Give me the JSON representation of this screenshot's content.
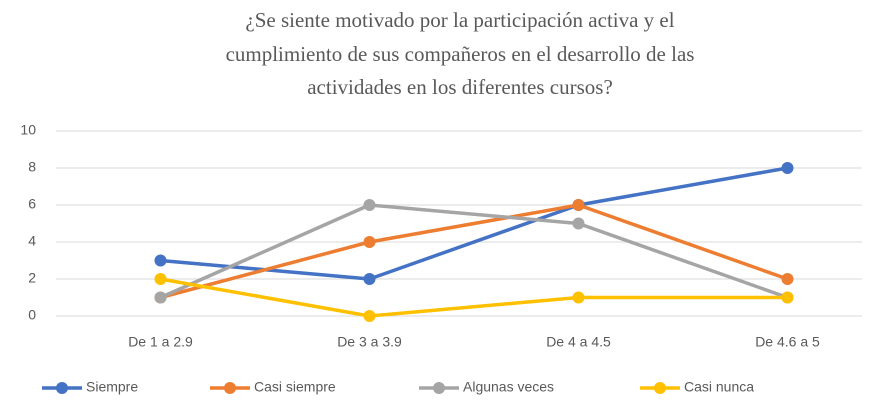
{
  "chart_data": {
    "type": "line",
    "title": [
      "¿Se siente motivado por la participación activa y el",
      "cumplimiento de sus compañeros en el desarrollo de las",
      "actividades en los diferentes cursos?"
    ],
    "categories": [
      "De 1 a 2.9",
      "De 3 a 3.9",
      "De 4 a 4.5",
      "De 4.6 a 5"
    ],
    "series": [
      {
        "name": "Siempre",
        "color": "#4472c4",
        "values": [
          3,
          2,
          6,
          8
        ]
      },
      {
        "name": "Casi siempre",
        "color": "#ed7d31",
        "values": [
          1,
          4,
          6,
          2
        ]
      },
      {
        "name": "Algunas veces",
        "color": "#a5a5a5",
        "values": [
          1,
          6,
          5,
          1
        ]
      },
      {
        "name": "Casi nunca",
        "color": "#ffc000",
        "values": [
          2,
          0,
          1,
          1
        ]
      }
    ],
    "ylim": [
      0,
      10
    ],
    "yticks": [
      0,
      2,
      4,
      6,
      8,
      10
    ],
    "grid": true,
    "legend": "bottom"
  }
}
